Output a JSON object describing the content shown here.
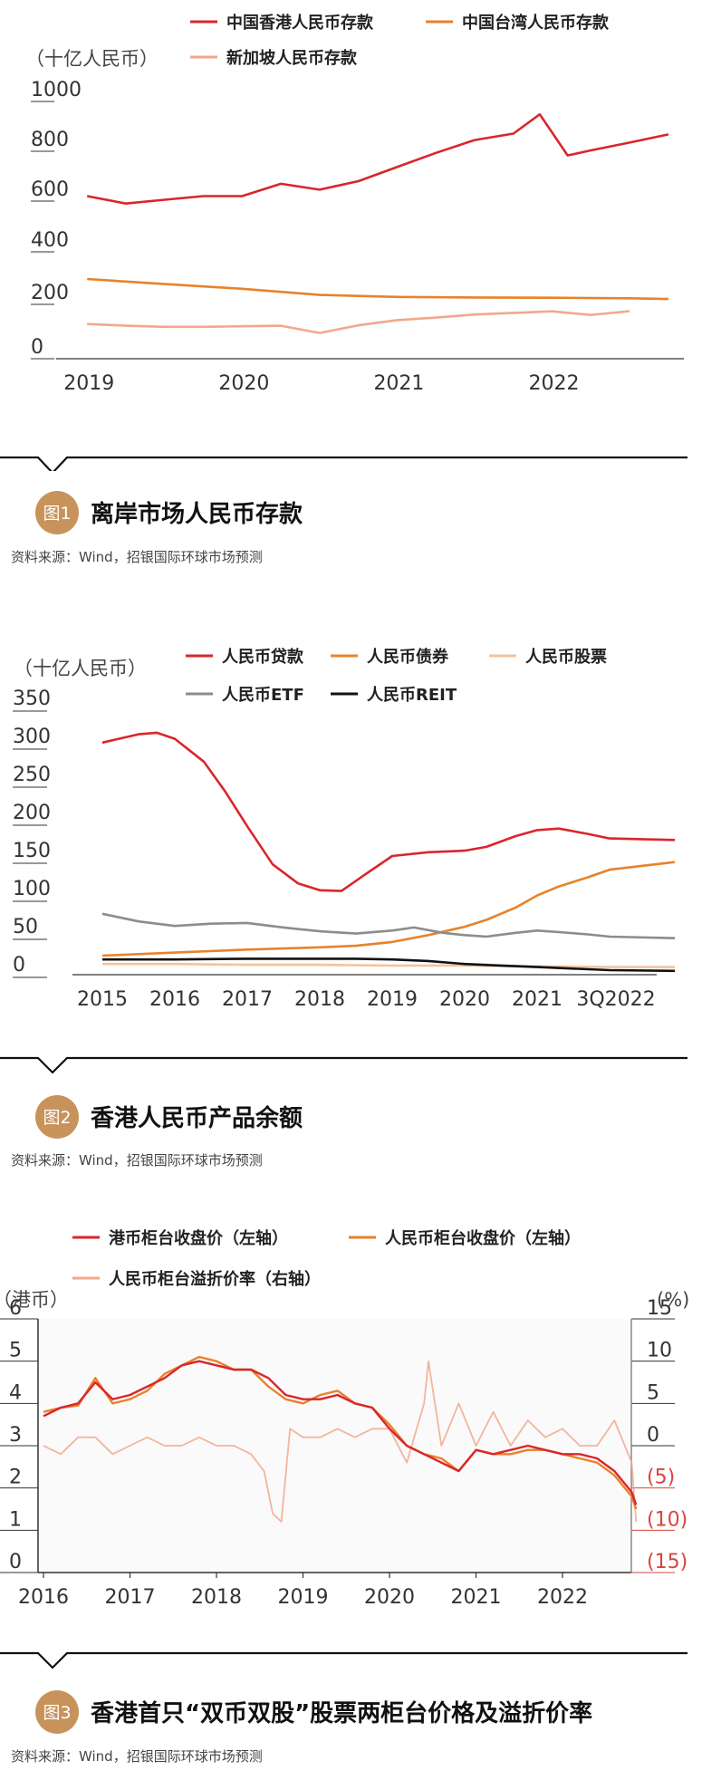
{
  "colors": {
    "red": "#d9262b",
    "orange": "#e8822b",
    "salmon": "#f2a88c",
    "lightorange": "#f5c29a",
    "gray": "#8c8c8c",
    "black": "#111111",
    "badge": "#c8935a",
    "axis": "#333333"
  },
  "figures": [
    {
      "num_label": "图1",
      "title": "离岸市场人民币存款",
      "source": "资料来源：Wind，招银国际环球市场预测"
    },
    {
      "num_label": "图2",
      "title": "香港人民币产品余额",
      "source": "资料来源：Wind，招银国际环球市场预测"
    },
    {
      "num_label": "图3",
      "title": "香港首只“双币双股”股票两柜台价格及溢折价率",
      "source": "资料来源：Wind，招银国际环球市场预测"
    }
  ],
  "chart_data": [
    {
      "type": "line",
      "unit_label": "（十亿人民币）",
      "x_ticks": [
        "2019",
        "2020",
        "2021",
        "2022"
      ],
      "y_ticks": [
        "1000",
        "800",
        "600",
        "400",
        "200",
        "0"
      ],
      "ylim": [
        0,
        1000
      ],
      "xlim": [
        2018.8,
        2022.85
      ],
      "series": [
        {
          "name": "中国香港人民币存款",
          "color": "red",
          "x": [
            2019.0,
            2019.25,
            2019.5,
            2019.75,
            2020.0,
            2020.25,
            2020.5,
            2020.75,
            2021.0,
            2021.25,
            2021.5,
            2021.75,
            2021.92,
            2022.1,
            2022.25,
            2022.5,
            2022.75
          ],
          "y": [
            632,
            603,
            618,
            632,
            632,
            680,
            657,
            690,
            745,
            800,
            850,
            875,
            950,
            790,
            810,
            840,
            872
          ]
        },
        {
          "name": "中国台湾人民币存款",
          "color": "orange",
          "x": [
            2019.0,
            2019.5,
            2020.0,
            2020.5,
            2021.0,
            2021.5,
            2022.0,
            2022.5,
            2022.75
          ],
          "y": [
            310,
            290,
            272,
            248,
            240,
            238,
            237,
            235,
            232
          ]
        },
        {
          "name": "新加坡人民币存款",
          "color": "salmon",
          "x": [
            2019.0,
            2019.25,
            2019.5,
            2019.75,
            2020.0,
            2020.25,
            2020.5,
            2020.75,
            2021.0,
            2021.25,
            2021.5,
            2021.75,
            2022.0,
            2022.25,
            2022.5
          ],
          "y": [
            135,
            128,
            124,
            124,
            126,
            128,
            100,
            130,
            150,
            160,
            172,
            178,
            184,
            170,
            185
          ]
        }
      ]
    },
    {
      "type": "line",
      "unit_label": "（十亿人民币）",
      "x_ticks": [
        "2015",
        "2016",
        "2017",
        "2018",
        "2019",
        "2020",
        "2021",
        "3Q2022"
      ],
      "y_ticks": [
        "350",
        "300",
        "250",
        "200",
        "150",
        "100",
        "50",
        "0"
      ],
      "ylim": [
        0,
        350
      ],
      "series": [
        {
          "name": "人民币贷款",
          "color": "red",
          "x": [
            2015.0,
            2015.5,
            2015.75,
            2016.0,
            2016.4,
            2016.7,
            2017.0,
            2017.35,
            2017.7,
            2018.0,
            2018.3,
            2018.6,
            2019.0,
            2019.5,
            2020.0,
            2020.3,
            2020.7,
            2021.0,
            2021.3,
            2021.7,
            2022.0,
            2022.3
          ],
          "y": [
            305,
            316,
            318,
            310,
            280,
            240,
            195,
            145,
            120,
            111,
            110,
            130,
            156,
            161,
            163,
            168,
            182,
            190,
            192,
            185,
            179,
            177
          ]
        },
        {
          "name": "人民币债券",
          "color": "orange",
          "x": [
            2015.0,
            2016.0,
            2017.0,
            2018.0,
            2018.5,
            2019.0,
            2019.5,
            2020.0,
            2020.3,
            2020.7,
            2021.0,
            2021.3,
            2021.7,
            2022.0,
            2022.3
          ],
          "y": [
            25,
            29,
            33,
            36,
            38,
            43,
            52,
            63,
            72,
            88,
            104,
            116,
            128,
            138,
            148
          ]
        },
        {
          "name": "人民币股票",
          "color": "lightorange",
          "x": [
            2015.0,
            2016.0,
            2017.0,
            2018.0,
            2019.0,
            2020.0,
            2021.0,
            2022.0,
            2022.3
          ],
          "y": [
            14,
            14,
            13,
            13,
            12,
            12,
            11,
            10,
            10
          ]
        },
        {
          "name": "人民币ETF",
          "color": "gray",
          "x": [
            2015.0,
            2015.5,
            2016.0,
            2016.5,
            2017.0,
            2017.5,
            2018.0,
            2018.5,
            2019.0,
            2019.3,
            2019.7,
            2020.0,
            2020.3,
            2020.7,
            2021.0,
            2021.3,
            2021.7,
            2022.0,
            2022.3
          ],
          "y": [
            80,
            70,
            64,
            67,
            68,
            62,
            57,
            54,
            58,
            62,
            55,
            52,
            50,
            55,
            58,
            56,
            53,
            50,
            48
          ]
        },
        {
          "name": "人民币REIT",
          "color": "black",
          "x": [
            2015.0,
            2016.0,
            2017.0,
            2018.0,
            2018.5,
            2019.0,
            2019.5,
            2020.0,
            2020.5,
            2021.0,
            2021.5,
            2022.0,
            2022.3
          ],
          "y": [
            20,
            20,
            21,
            21,
            21,
            20,
            18,
            14,
            12,
            10,
            8,
            6,
            5
          ]
        }
      ]
    },
    {
      "type": "line",
      "unit_label_left": "（港币）",
      "unit_label_right": "(%)",
      "x_ticks": [
        "2016",
        "2017",
        "2018",
        "2019",
        "2020",
        "2021",
        "2022"
      ],
      "y_ticks_left": [
        "6",
        "5",
        "4",
        "3",
        "2",
        "1",
        "0"
      ],
      "y_ticks_right": [
        "15",
        "10",
        "5",
        "0",
        "(5)",
        "(10)",
        "(15)"
      ],
      "ylim_left": [
        0,
        6
      ],
      "ylim_right": [
        -15,
        15
      ],
      "series": [
        {
          "name": "港币柜台收盘价（左轴）",
          "color": "red",
          "axis": "left",
          "x": [
            2016.0,
            2016.2,
            2016.4,
            2016.6,
            2016.8,
            2017.0,
            2017.2,
            2017.4,
            2017.6,
            2017.8,
            2018.0,
            2018.2,
            2018.4,
            2018.6,
            2018.8,
            2019.0,
            2019.2,
            2019.4,
            2019.6,
            2019.8,
            2020.0,
            2020.2,
            2020.4,
            2020.6,
            2020.8,
            2021.0,
            2021.2,
            2021.4,
            2021.6,
            2021.8,
            2022.0,
            2022.2,
            2022.4,
            2022.6,
            2022.8,
            2022.85
          ],
          "y": [
            3.7,
            3.9,
            4.0,
            4.5,
            4.1,
            4.2,
            4.4,
            4.6,
            4.9,
            5.0,
            4.9,
            4.8,
            4.8,
            4.6,
            4.2,
            4.1,
            4.1,
            4.2,
            4.0,
            3.9,
            3.4,
            3.0,
            2.8,
            2.6,
            2.4,
            2.9,
            2.8,
            2.9,
            3.0,
            2.9,
            2.8,
            2.8,
            2.7,
            2.4,
            1.9,
            1.6
          ]
        },
        {
          "name": "人民币柜台收盘价（左轴）",
          "color": "orange",
          "axis": "left",
          "x": [
            2016.0,
            2016.2,
            2016.4,
            2016.6,
            2016.8,
            2017.0,
            2017.2,
            2017.4,
            2017.6,
            2017.8,
            2018.0,
            2018.2,
            2018.4,
            2018.6,
            2018.8,
            2019.0,
            2019.2,
            2019.4,
            2019.6,
            2019.8,
            2020.0,
            2020.2,
            2020.4,
            2020.6,
            2020.8,
            2021.0,
            2021.2,
            2021.4,
            2021.6,
            2021.8,
            2022.0,
            2022.2,
            2022.4,
            2022.6,
            2022.8,
            2022.85
          ],
          "y": [
            3.8,
            3.9,
            3.95,
            4.6,
            4.0,
            4.1,
            4.3,
            4.7,
            4.9,
            5.1,
            5.0,
            4.8,
            4.8,
            4.4,
            4.1,
            4.0,
            4.2,
            4.3,
            4.0,
            3.9,
            3.5,
            3.0,
            2.8,
            2.7,
            2.4,
            2.9,
            2.8,
            2.8,
            2.9,
            2.9,
            2.8,
            2.7,
            2.6,
            2.3,
            1.8,
            1.5
          ]
        },
        {
          "name": "人民币柜台溢折价率（右轴）",
          "color": "salmon",
          "axis": "right",
          "x": [
            2016.0,
            2016.2,
            2016.4,
            2016.6,
            2016.8,
            2017.0,
            2017.2,
            2017.4,
            2017.6,
            2017.8,
            2018.0,
            2018.2,
            2018.4,
            2018.55,
            2018.65,
            2018.75,
            2018.85,
            2019.0,
            2019.2,
            2019.4,
            2019.6,
            2019.8,
            2020.0,
            2020.2,
            2020.4,
            2020.45,
            2020.6,
            2020.8,
            2021.0,
            2021.2,
            2021.4,
            2021.6,
            2021.8,
            2022.0,
            2022.2,
            2022.4,
            2022.6,
            2022.8,
            2022.85
          ],
          "y": [
            0,
            -1,
            1,
            1,
            -1,
            0,
            1,
            0,
            0,
            1,
            0,
            0,
            -1,
            -3,
            -8,
            -9,
            2,
            1,
            1,
            2,
            1,
            2,
            2,
            -2,
            5,
            10,
            0,
            5,
            0,
            4,
            0,
            3,
            1,
            2,
            0,
            0,
            3,
            -2,
            -9
          ]
        }
      ]
    }
  ]
}
